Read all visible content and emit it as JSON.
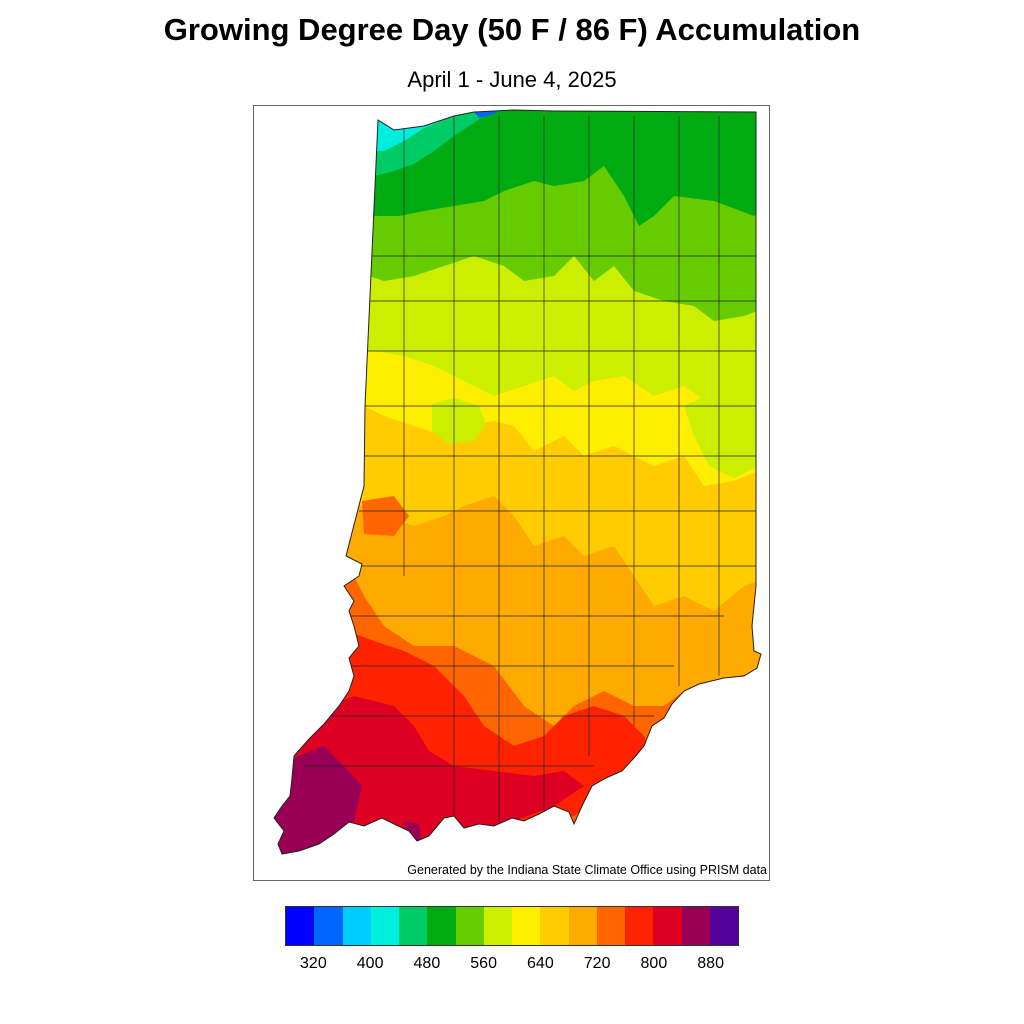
{
  "title": "Growing Degree Day (50 F / 86 F) Accumulation",
  "subtitle": "April 1 - June 4, 2025",
  "credit": "Generated by the Indiana State Climate Office using PRISM data",
  "legend": {
    "colors": [
      "#0000ff",
      "#0066ff",
      "#00ccff",
      "#00eedd",
      "#00cc66",
      "#00aa11",
      "#66cc00",
      "#ccee00",
      "#ffee00",
      "#ffcc00",
      "#ffaa00",
      "#ff6600",
      "#ff2200",
      "#dd0022",
      "#990055",
      "#550099"
    ],
    "ticks": [
      "320",
      "400",
      "480",
      "560",
      "640",
      "720",
      "800",
      "880"
    ]
  },
  "chart_data": {
    "type": "heatmap",
    "title": "Growing Degree Day (50 F / 86 F) Accumulation",
    "subtitle": "April 1 - June 4, 2025",
    "units": "GDD",
    "color_scale": {
      "min": 280,
      "max": 920,
      "step": 40,
      "tick_labels": [
        320,
        400,
        480,
        560,
        640,
        720,
        800,
        880
      ]
    },
    "regions_by_band": [
      {
        "region": "far northwest edge",
        "range": [
          360,
          480
        ]
      },
      {
        "region": "northern Indiana",
        "range": [
          480,
          560
        ]
      },
      {
        "region": "north-central Indiana",
        "range": [
          560,
          640
        ]
      },
      {
        "region": "central Indiana",
        "range": [
          600,
          680
        ]
      },
      {
        "region": "south-central Indiana",
        "range": [
          680,
          760
        ]
      },
      {
        "region": "southern Indiana",
        "range": [
          760,
          840
        ]
      },
      {
        "region": "far southwest corner",
        "range": [
          840,
          880
        ]
      }
    ]
  }
}
